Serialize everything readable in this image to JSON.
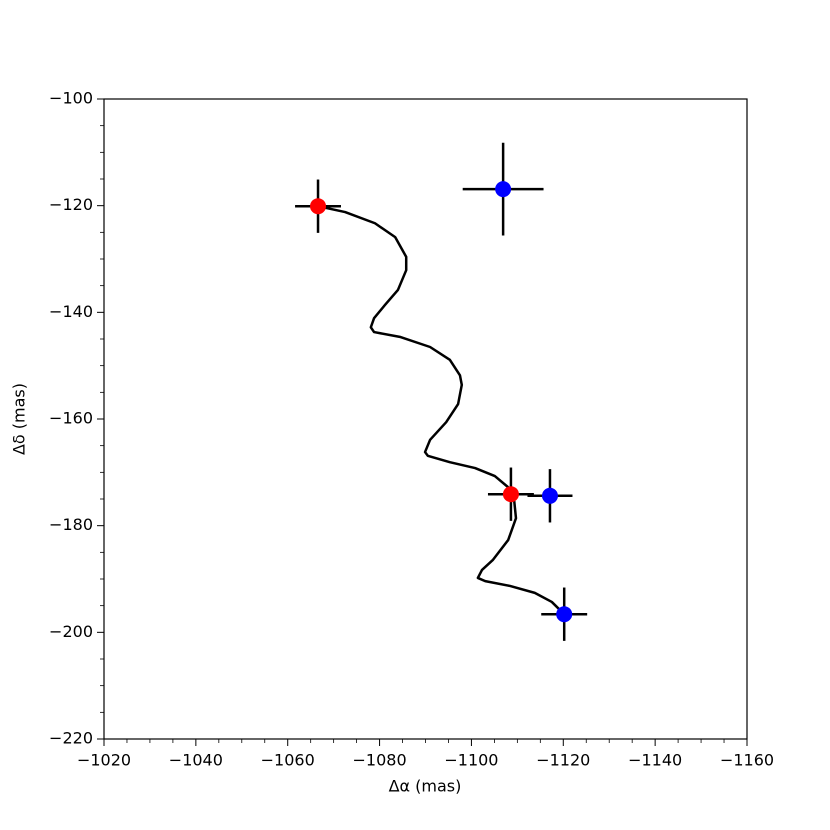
{
  "chart_data": {
    "type": "scatter",
    "xlabel": "Δα (mas)",
    "ylabel": "Δδ (mas)",
    "xlim": [
      -1020,
      -1160
    ],
    "ylim": [
      -220,
      -100
    ],
    "xticks": [
      {
        "value": -1020,
        "label": "−1020"
      },
      {
        "value": -1040,
        "label": "−1040"
      },
      {
        "value": -1060,
        "label": "−1060"
      },
      {
        "value": -1080,
        "label": "−1080"
      },
      {
        "value": -1100,
        "label": "−1100"
      },
      {
        "value": -1120,
        "label": "−1120"
      },
      {
        "value": -1140,
        "label": "−1140"
      },
      {
        "value": -1160,
        "label": "−1160"
      }
    ],
    "yticks": [
      {
        "value": -220,
        "label": "−220"
      },
      {
        "value": -200,
        "label": "−200"
      },
      {
        "value": -180,
        "label": "−180"
      },
      {
        "value": -160,
        "label": "−160"
      },
      {
        "value": -140,
        "label": "−140"
      },
      {
        "value": -120,
        "label": "−120"
      },
      {
        "value": -100,
        "label": "−100"
      }
    ],
    "xminorticks": [
      -1025,
      -1030,
      -1035,
      -1045,
      -1050,
      -1055,
      -1065,
      -1070,
      -1075,
      -1085,
      -1090,
      -1095,
      -1105,
      -1110,
      -1115,
      -1125,
      -1130,
      -1135,
      -1145,
      -1150,
      -1155
    ],
    "yminorticks": [
      -215,
      -210,
      -205,
      -195,
      -190,
      -185,
      -175,
      -170,
      -165,
      -155,
      -150,
      -145,
      -135,
      -130,
      -125,
      -115,
      -110,
      -105
    ],
    "lines": [
      {
        "color": "#000000",
        "x": [
          -1066.6,
          -1072.5,
          -1079.0,
          -1083.4,
          -1085.8,
          -1085.8,
          -1084.0,
          -1081.2,
          -1078.8,
          -1078.1,
          -1078.8,
          -1084.4,
          -1091.0,
          -1095.3,
          -1097.5,
          -1097.9,
          -1097.1,
          -1094.5,
          -1091.0,
          -1089.9,
          -1090.5,
          -1095.3,
          -1100.8,
          -1105.1,
          -1108.0,
          -1109.3,
          -1109.7,
          -1108.0,
          -1104.7,
          -1102.3,
          -1101.4,
          -1103.0,
          -1108.4,
          -1113.8,
          -1117.5,
          -1120.2
        ],
        "y": [
          -120.1,
          -121.2,
          -123.3,
          -125.9,
          -129.6,
          -132.1,
          -135.8,
          -138.6,
          -141.1,
          -142.8,
          -143.7,
          -144.6,
          -146.5,
          -148.9,
          -151.8,
          -153.6,
          -157.2,
          -160.6,
          -163.9,
          -166.2,
          -166.9,
          -168.1,
          -169.2,
          -170.7,
          -172.8,
          -175.2,
          -178.6,
          -182.7,
          -186.4,
          -188.3,
          -189.8,
          -190.4,
          -191.3,
          -192.6,
          -194.3,
          -196.6
        ]
      }
    ],
    "points": [
      {
        "x": -1066.6,
        "y": -120.1,
        "xerr": 5,
        "yerr": 5,
        "color": "#ff0000"
      },
      {
        "x": -1108.6,
        "y": -174.1,
        "xerr": 5,
        "yerr": 5,
        "color": "#ff0000"
      },
      {
        "x": -1106.9,
        "y": -116.9,
        "xerr": 8.8,
        "yerr": 8.7,
        "color": "#0000ff"
      },
      {
        "x": -1117.1,
        "y": -174.4,
        "xerr": 4.9,
        "yerr": 5,
        "color": "#0000ff"
      },
      {
        "x": -1120.2,
        "y": -196.6,
        "xerr": 5,
        "yerr": 5,
        "color": "#0000ff"
      }
    ]
  }
}
